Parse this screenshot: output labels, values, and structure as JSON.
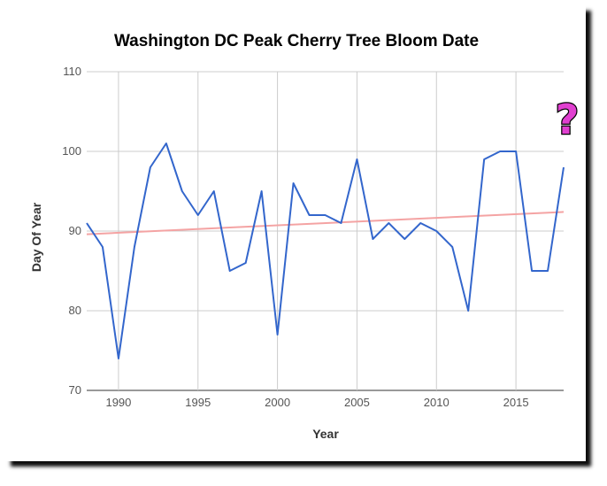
{
  "chart_data": {
    "type": "line",
    "title": "Washington DC Peak Cherry Tree Bloom Date",
    "xlabel": "Year",
    "ylabel": "Day Of Year",
    "xlim": [
      1988,
      2018
    ],
    "ylim": [
      70,
      110
    ],
    "xticks": [
      1990,
      1995,
      2000,
      2005,
      2010,
      2015
    ],
    "yticks": [
      70,
      80,
      90,
      100,
      110
    ],
    "grid": true,
    "legend": "none",
    "x": [
      1988,
      1989,
      1990,
      1991,
      1992,
      1993,
      1994,
      1995,
      1996,
      1997,
      1998,
      1999,
      2000,
      2001,
      2002,
      2003,
      2004,
      2005,
      2006,
      2007,
      2008,
      2009,
      2010,
      2011,
      2012,
      2013,
      2014,
      2015,
      2016,
      2017,
      2018
    ],
    "series": [
      {
        "values": [
          91,
          88,
          74,
          88,
          98,
          101,
          95,
          92,
          95,
          85,
          86,
          95,
          77,
          96,
          92,
          92,
          91,
          99,
          89,
          91,
          89,
          91,
          90,
          88,
          80,
          99,
          100,
          100,
          85,
          85,
          98
        ],
        "color": "#3366cc"
      },
      {
        "trendline": true,
        "start": [
          1988,
          89.6
        ],
        "end": [
          2018,
          92.4
        ],
        "color": "#f4a3a3"
      }
    ],
    "annotation": {
      "symbol": "?",
      "color": "#e040d0",
      "outline": "#000000",
      "x": 2018,
      "y": 104
    }
  }
}
